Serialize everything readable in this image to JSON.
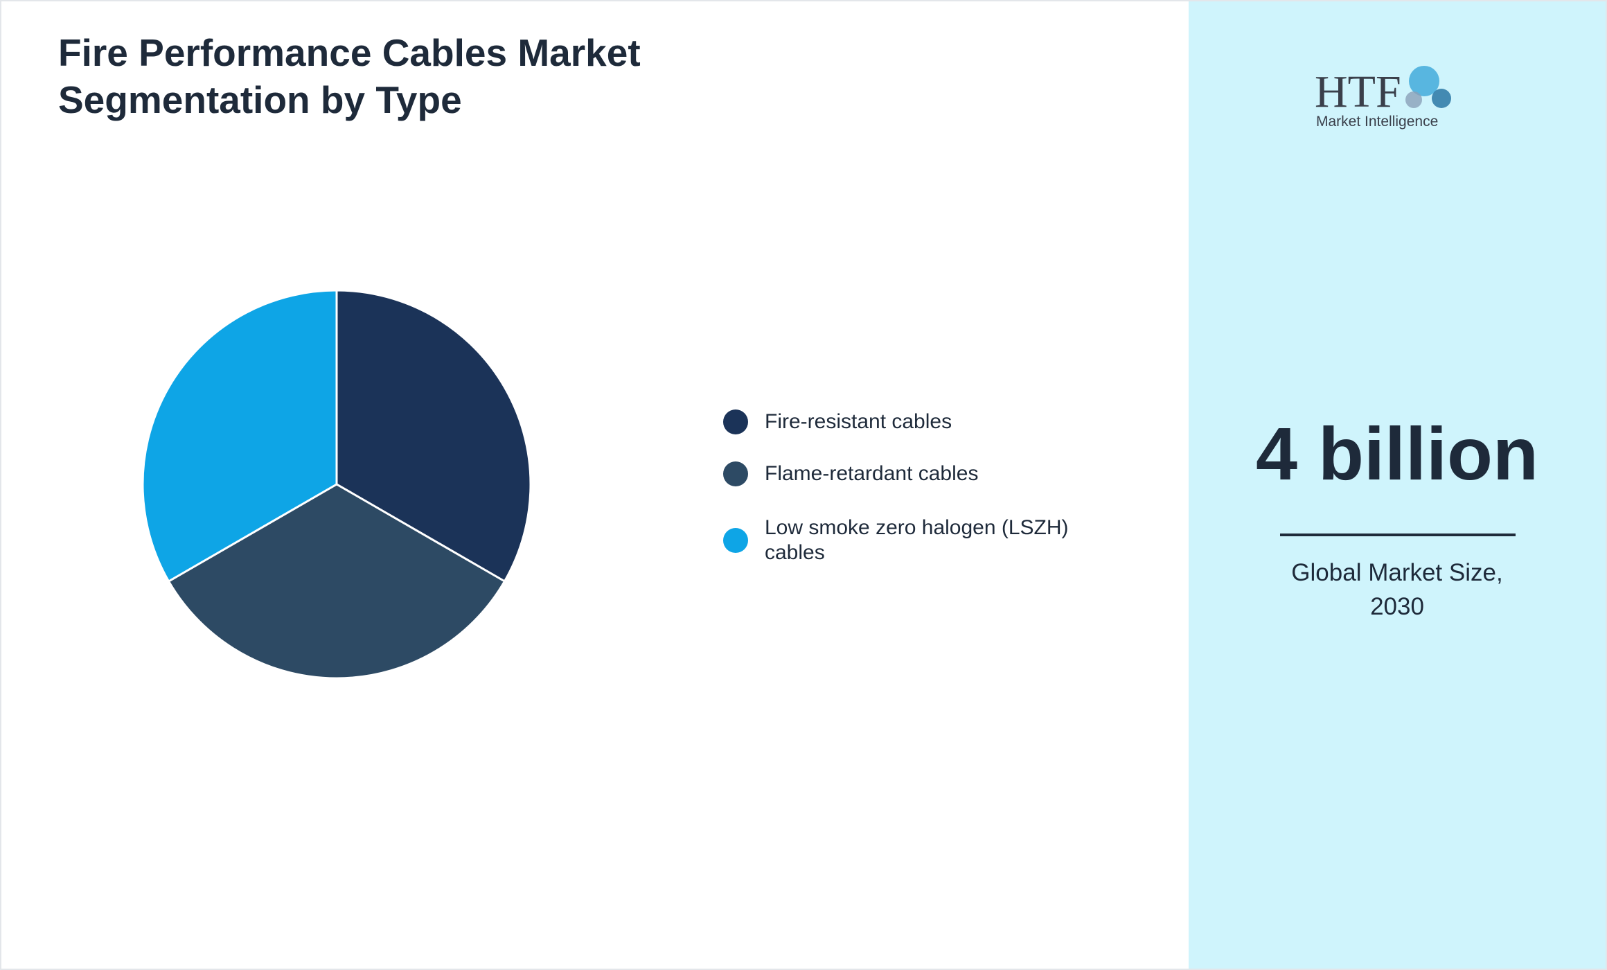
{
  "chart_data": {
    "type": "pie",
    "title": "Fire Performance Cables Market Segmentation by Type",
    "categories": [
      "Fire-resistant cables",
      "Flame-retardant cables",
      "Low smoke zero halogen (LSZH) cables"
    ],
    "values": [
      33.3,
      33.3,
      33.3
    ],
    "colors": [
      "#1b3358",
      "#2d4a64",
      "#0ea5e6"
    ]
  },
  "logo": {
    "mark": "HTF",
    "subtitle": "Market Intelligence"
  },
  "highlight": {
    "value": "4 billion",
    "caption": "Global Market Size, 2030"
  }
}
